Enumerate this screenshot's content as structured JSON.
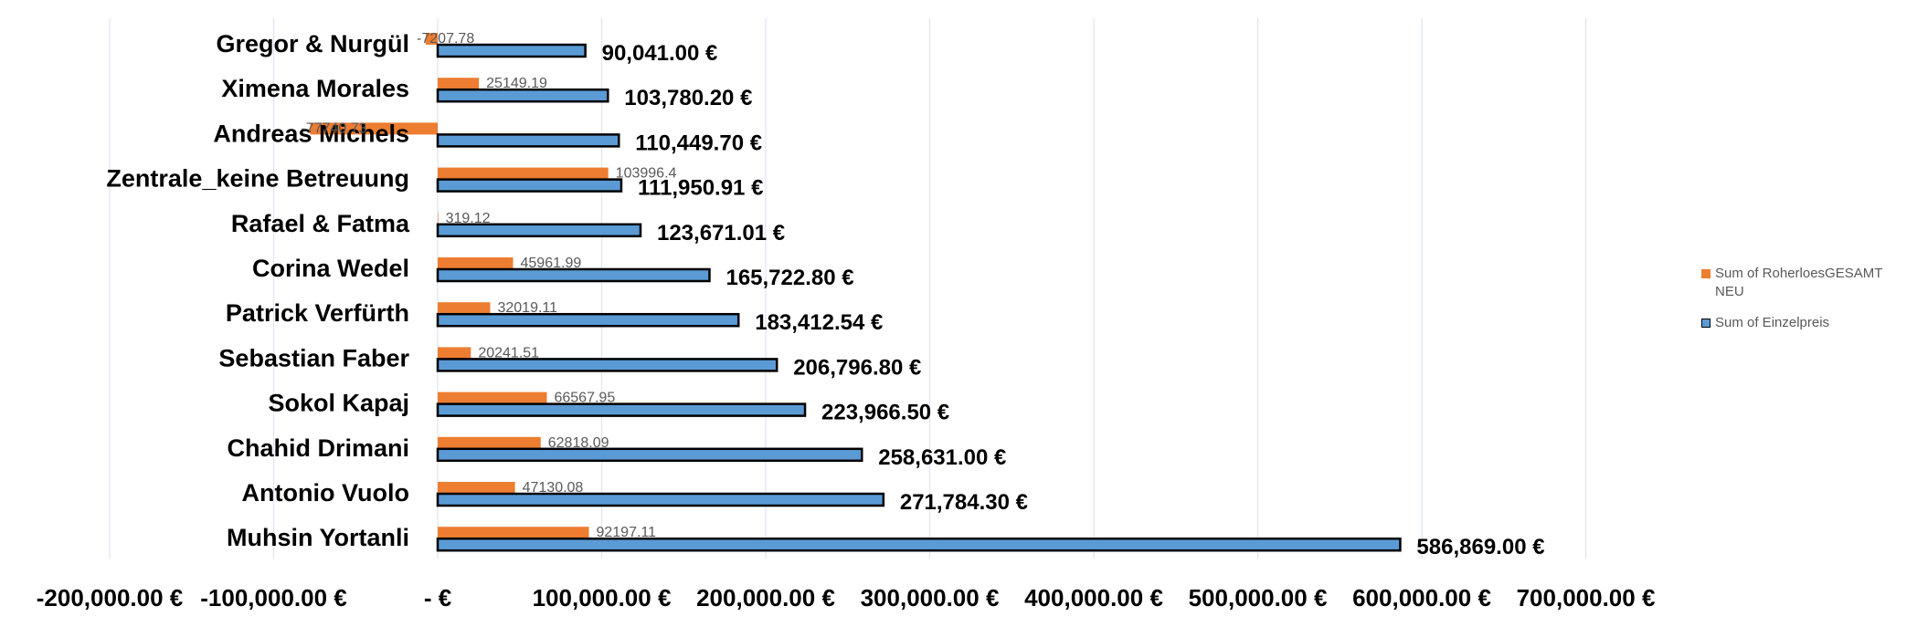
{
  "chart_data": {
    "type": "bar",
    "orientation": "horizontal",
    "title": "",
    "categories": [
      "Muhsin Yortanli",
      "Antonio Vuolo",
      "Chahid Drimani",
      "Sokol Kapaj",
      "Sebastian Faber",
      "Patrick Verfürth",
      "Corina Wedel",
      "Rafael & Fatma",
      "Zentrale_keine Betreuung",
      "Andreas Michels",
      "Ximena Morales",
      "Gregor & Nurgül"
    ],
    "series": [
      {
        "name": "Sum of Einzelpreis",
        "color": "#5b9bd5",
        "border": "#000000",
        "values": [
          586869.0,
          271784.3,
          258631.0,
          223966.5,
          206796.8,
          183412.54,
          165722.8,
          123671.01,
          111950.91,
          110449.7,
          103780.2,
          90041.0
        ],
        "labels": [
          "586,869.00 €",
          "271,784.30 €",
          "258,631.00 €",
          "223,966.50 €",
          "206,796.80 €",
          "183,412.54 €",
          "165,722.80 €",
          "123,671.01 €",
          "111,950.91 €",
          "110,449.70 €",
          "103,780.20 €",
          "90,041.00 €"
        ]
      },
      {
        "name": "Sum of RoherloesGESAMT NEU",
        "color": "#ed7d31",
        "values": [
          92197.11,
          47130.08,
          62818.09,
          66567.95,
          20241.51,
          32019.11,
          45961.99,
          319.12,
          103996.4,
          -77740.73,
          25149.19,
          -7207.78
        ],
        "labels": [
          "92197.11",
          "47130.08",
          "62818.09",
          "66567.95",
          "20241.51",
          "32019.11",
          "45961.99",
          "319.12",
          "103996.4",
          "-77740.73",
          "25149.19",
          "-7207.78"
        ]
      }
    ],
    "xlim": [
      -200000,
      700000
    ],
    "x_ticks": [
      -200000,
      -100000,
      0,
      100000,
      200000,
      300000,
      400000,
      500000,
      600000,
      700000
    ],
    "x_tick_labels": [
      "-200,000.00 €",
      "-100,000.00 €",
      "-  €",
      "100,000.00 €",
      "200,000.00 €",
      "300,000.00 €",
      "400,000.00 €",
      "500,000.00 €",
      "600,000.00 €",
      "700,000.00 €"
    ],
    "grid": true,
    "grid_color": "#dce6f2",
    "legend_position": "right",
    "legend_order": [
      "Sum of RoherloesGESAMT NEU",
      "Sum of Einzelpreis"
    ]
  }
}
